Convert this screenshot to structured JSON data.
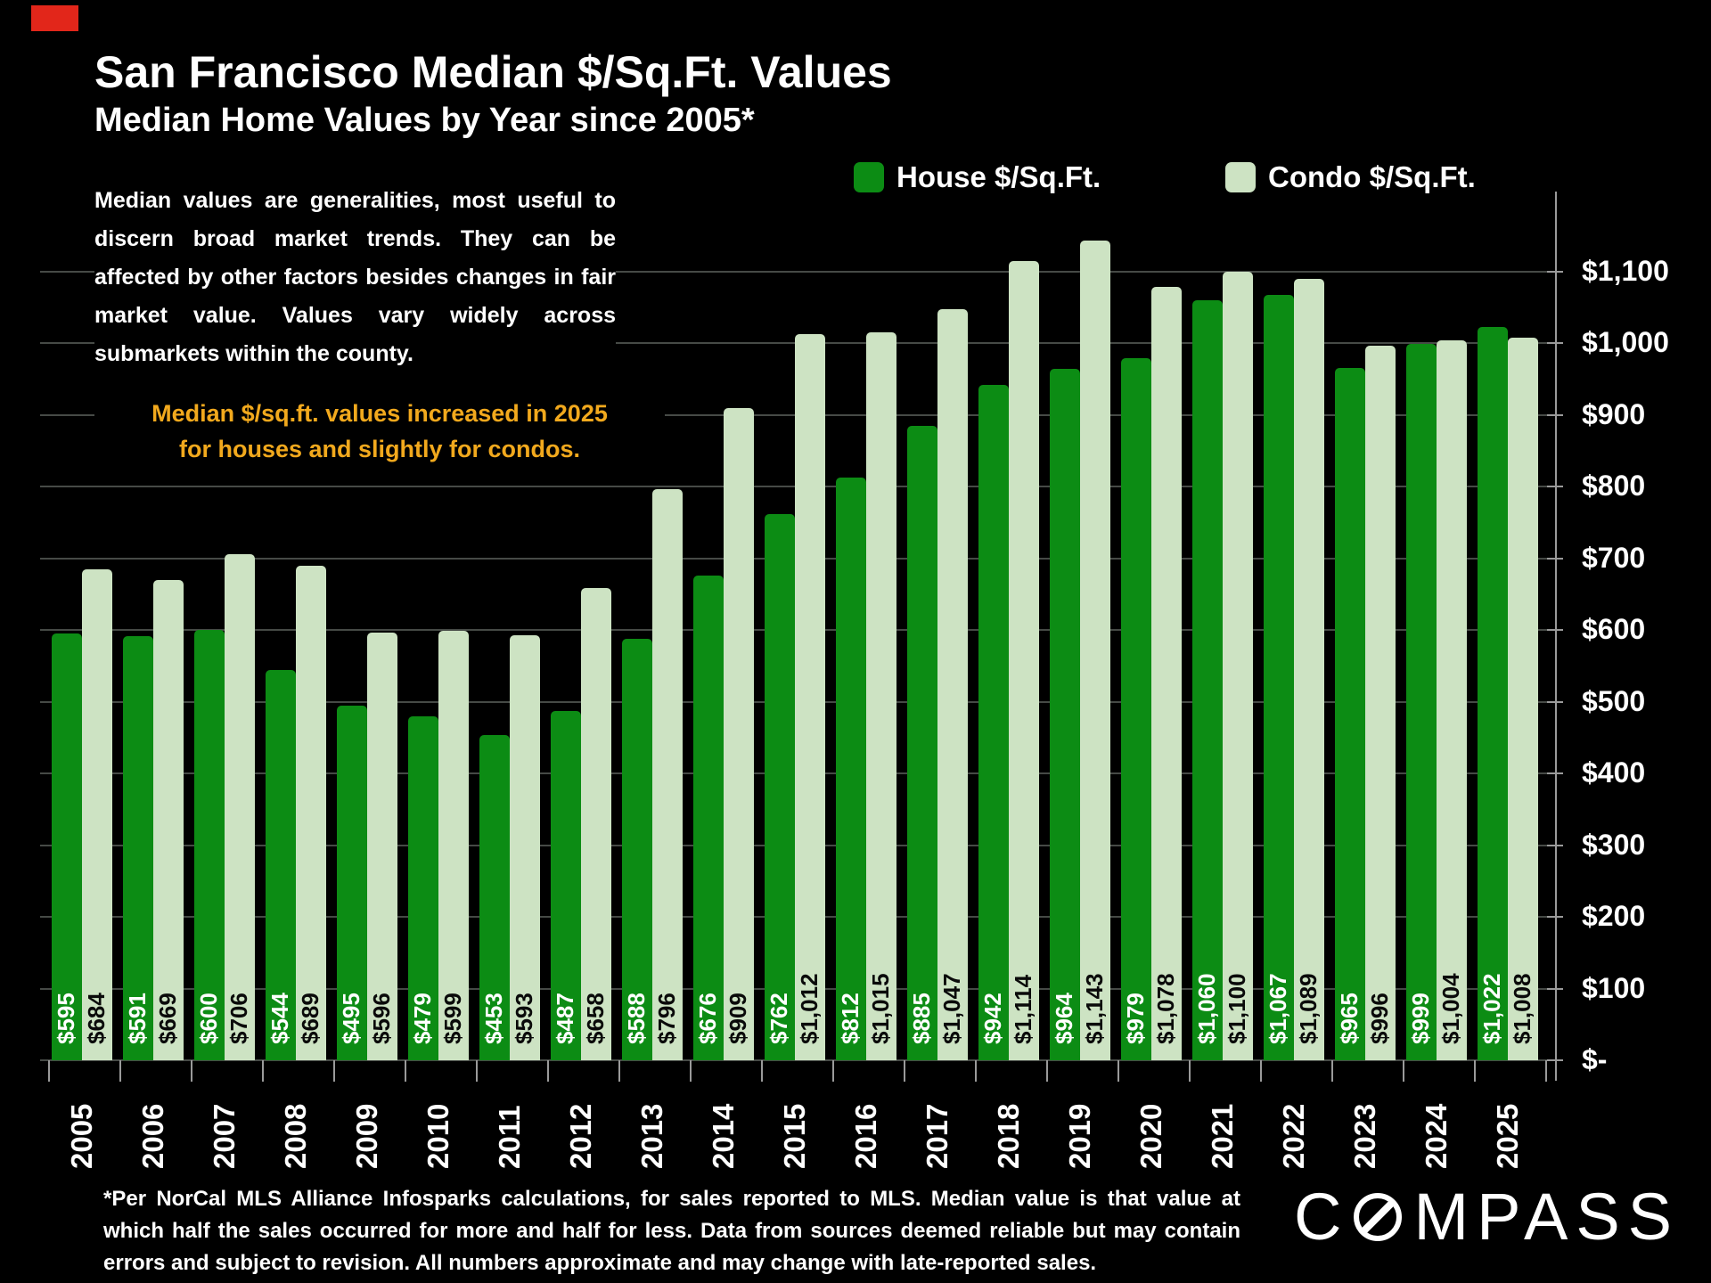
{
  "header": {
    "title": "San Francisco Median $/Sq.Ft. Values",
    "subtitle": "Median Home Values by Year since 2005*",
    "paragraph": "Median values are generalities, most useful to discern broad market trends. They can be affected by other factors besides changes in fair market value. Values vary widely across submarkets within the county.",
    "callout_line1": "Median $/sq.ft. values increased in 2025",
    "callout_line2": "for houses and slightly for condos.",
    "callout_color": "#F2A91D"
  },
  "legend": {
    "house_label": "House $/Sq.Ft.",
    "condo_label": "Condo $/Sq.Ft."
  },
  "chart_data": {
    "type": "bar",
    "categories": [
      "2005",
      "2006",
      "2007",
      "2008",
      "2009",
      "2010",
      "2011",
      "2012",
      "2013",
      "2014",
      "2015",
      "2016",
      "2017",
      "2018",
      "2019",
      "2020",
      "2021",
      "2022",
      "2023",
      "2024",
      "2025"
    ],
    "series": [
      {
        "name": "House $/Sq.Ft.",
        "color": "#0C8C14",
        "values": [
          595,
          591,
          600,
          544,
          495,
          479,
          453,
          487,
          588,
          676,
          762,
          812,
          885,
          942,
          964,
          979,
          1060,
          1067,
          965,
          999,
          1022
        ]
      },
      {
        "name": "Condo $/Sq.Ft.",
        "color": "#CDE3C3",
        "values": [
          684,
          669,
          706,
          689,
          596,
          599,
          593,
          658,
          796,
          909,
          1012,
          1015,
          1047,
          1114,
          1143,
          1078,
          1100,
          1089,
          996,
          1004,
          1008
        ]
      }
    ],
    "y_ticks": [
      "$-",
      "$100",
      "$200",
      "$300",
      "$400",
      "$500",
      "$600",
      "$700",
      "$800",
      "$900",
      "$1,000",
      "$1,100"
    ],
    "ylim": [
      0,
      1200
    ],
    "grid": true,
    "legend_position": "top",
    "value_label_format": "$#,###",
    "background": "#000000"
  },
  "footnote": "*Per NorCal MLS Alliance Infosparks calculations, for sales reported to MLS. Median value is that value at which half the sales occurred for more and half for less. Data from sources deemed reliable but may contain errors and subject to revision. All numbers approximate and may change with late-reported sales.",
  "logo": {
    "name": "COMPASS",
    "prefix": "C",
    "suffix": "MPASS"
  }
}
